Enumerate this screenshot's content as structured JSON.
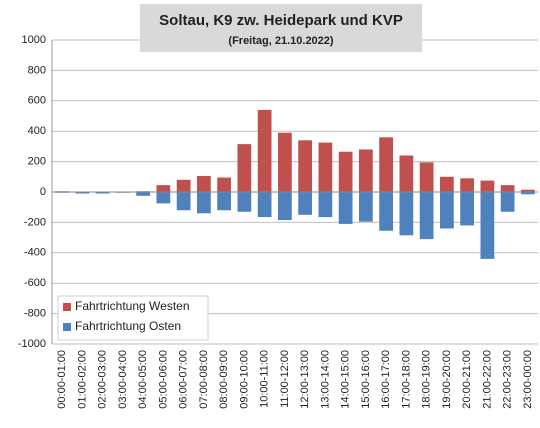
{
  "chart_data": {
    "type": "bar",
    "title": "Soltau, K9 zw. Heidepark und KVP",
    "subtitle": "(Freitag, 21.10.2022)",
    "categories": [
      "00:00-01:00",
      "01:00-02:00",
      "02:00-03:00",
      "03:00-04:00",
      "04:00-05:00",
      "05:00-06:00",
      "06:00-07:00",
      "07:00-08:00",
      "08:00-09:00",
      "09:00-10:00",
      "10:00-11:00",
      "11:00-12:00",
      "12:00-13:00",
      "13:00-14:00",
      "14:00-15:00",
      "15:00-16:00",
      "16:00-17:00",
      "17:00-18:00",
      "18:00-19:00",
      "19:00-20:00",
      "20:00-21:00",
      "21:00-22:00",
      "22:00-23:00",
      "23:00-00:00"
    ],
    "series": [
      {
        "name": "Fahrtrichtung Westen",
        "color": "#c0504d",
        "values": [
          5,
          3,
          0,
          0,
          5,
          45,
          80,
          105,
          95,
          315,
          540,
          390,
          340,
          325,
          265,
          280,
          360,
          240,
          195,
          100,
          90,
          75,
          45,
          15
        ]
      },
      {
        "name": "Fahrtrichtung Osten",
        "color": "#4f81bd",
        "values": [
          -5,
          -10,
          -10,
          -5,
          -25,
          -75,
          -120,
          -140,
          -120,
          -130,
          -165,
          -185,
          -150,
          -165,
          -210,
          -195,
          -255,
          -285,
          -310,
          -240,
          -220,
          -440,
          -130,
          -15
        ]
      }
    ],
    "ylim": [
      -1000,
      1000
    ],
    "yticks": [
      -1000,
      -800,
      -600,
      -400,
      -200,
      0,
      200,
      400,
      600,
      800,
      1000
    ],
    "grid": true,
    "legend": "lower left"
  }
}
